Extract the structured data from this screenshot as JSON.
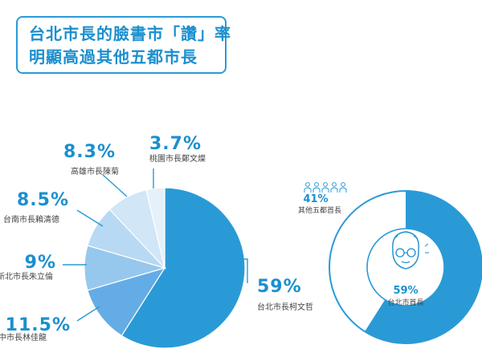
{
  "title": {
    "line1": "台北市長的臉書市「讚」率",
    "line2": "明顯高過其他五都市長"
  },
  "colors": {
    "primary": "#2a9ad6",
    "text_blue": "#1b8fcf",
    "label_gray": "#444444",
    "leader": "#2a9ad6"
  },
  "chart_data": [
    {
      "type": "pie",
      "series": [
        {
          "labels": [
            "台北市長柯文哲",
            "台中市長林佳龍",
            "新北市長朱立倫",
            "台南市長賴清德",
            "高雄市長陳菊",
            "桃園市長鄭文燦"
          ],
          "values": [
            59,
            11.5,
            9,
            8.5,
            8.3,
            3.7
          ],
          "value_labels": [
            "59%",
            "11.5%",
            "9%",
            "8.5%",
            "8.3%",
            "3.7%"
          ],
          "colors": [
            "#2a9ad6",
            "#64ace5",
            "#96c8ee",
            "#b8d9f3",
            "#d1e6f6",
            "#e5f1fa"
          ]
        }
      ]
    },
    {
      "type": "pie",
      "style": "donut",
      "series": [
        {
          "labels": [
            "台北市首長",
            "其他五都首長"
          ],
          "values": [
            59,
            41
          ],
          "value_labels": [
            "59%",
            "41%"
          ],
          "colors": [
            "#2a9ad6",
            "#ffffff"
          ]
        }
      ]
    }
  ],
  "icons": {
    "people": "people-row-icon",
    "mayor": "mayor-face-icon"
  }
}
